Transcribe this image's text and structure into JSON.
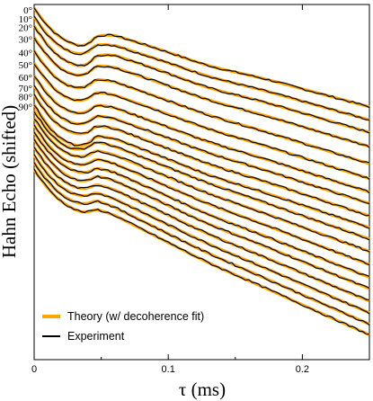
{
  "chart_data": {
    "type": "line",
    "xlabel": "τ (ms)",
    "ylabel": "Hahn Echo (shifted)",
    "xlim": [
      0,
      0.25
    ],
    "x_ticks": [
      {
        "value": 0,
        "label": "0"
      },
      {
        "value": 0.1,
        "label": "0.1"
      },
      {
        "value": 0.2,
        "label": "0.2"
      }
    ],
    "y_ticks_labeled": false,
    "grid": false,
    "legend_position": "bottom-left",
    "colors": {
      "theory": "#ffa500",
      "experiment": "#000000"
    },
    "legend": [
      {
        "key": "theory",
        "label": "Theory (w/ decoherence fit)"
      },
      {
        "key": "experiment",
        "label": "Experiment"
      }
    ],
    "curve_labels": [
      "0°",
      "10°",
      "20°",
      "30°",
      "40°",
      "50°",
      "60°",
      "70°",
      "80°",
      "90°"
    ],
    "series": [
      {
        "label": "0°",
        "start": 0.99,
        "dip": 0.93,
        "peak": 0.965,
        "end": 0.712
      },
      {
        "label": "10°",
        "start": 0.965,
        "dip": 0.905,
        "peak": 0.945,
        "end": 0.675
      },
      {
        "label": "20°",
        "start": 0.94,
        "dip": 0.875,
        "peak": 0.915,
        "end": 0.64
      },
      {
        "label": "30°",
        "start": 0.908,
        "dip": 0.845,
        "peak": 0.89,
        "end": 0.6
      },
      {
        "label": "40°",
        "start": 0.87,
        "dip": 0.81,
        "peak": 0.855,
        "end": 0.552
      },
      {
        "label": "50°",
        "start": 0.835,
        "dip": 0.775,
        "peak": 0.82,
        "end": 0.51
      },
      {
        "label": "60°",
        "start": 0.8,
        "dip": 0.74,
        "peak": 0.785,
        "end": 0.472
      },
      {
        "label": "70°",
        "start": 0.77,
        "dip": 0.71,
        "peak": 0.755,
        "end": 0.44
      },
      {
        "label": "80°",
        "start": 0.745,
        "dip": 0.685,
        "peak": 0.728,
        "end": 0.405
      },
      {
        "label": "90°",
        "start": 0.718,
        "dip": 0.652,
        "peak": 0.7,
        "end": 0.372
      },
      {
        "label": "",
        "start": 0.7,
        "dip": 0.64,
        "peak": 0.69,
        "end": 0.34
      },
      {
        "label": "",
        "start": 0.68,
        "dip": 0.625,
        "peak": 0.668,
        "end": 0.305
      },
      {
        "label": "",
        "start": 0.66,
        "dip": 0.605,
        "peak": 0.648,
        "end": 0.268
      },
      {
        "label": "",
        "start": 0.64,
        "dip": 0.59,
        "peak": 0.625,
        "end": 0.232
      },
      {
        "label": "",
        "start": 0.62,
        "dip": 0.568,
        "peak": 0.605,
        "end": 0.2
      },
      {
        "label": "",
        "start": 0.598,
        "dip": 0.548,
        "peak": 0.585,
        "end": 0.165
      },
      {
        "label": "",
        "start": 0.575,
        "dip": 0.528,
        "peak": 0.565,
        "end": 0.132
      },
      {
        "label": "",
        "start": 0.555,
        "dip": 0.508,
        "peak": 0.545,
        "end": 0.1
      },
      {
        "label": "",
        "start": 0.535,
        "dip": 0.49,
        "peak": 0.522,
        "end": 0.07
      }
    ]
  }
}
